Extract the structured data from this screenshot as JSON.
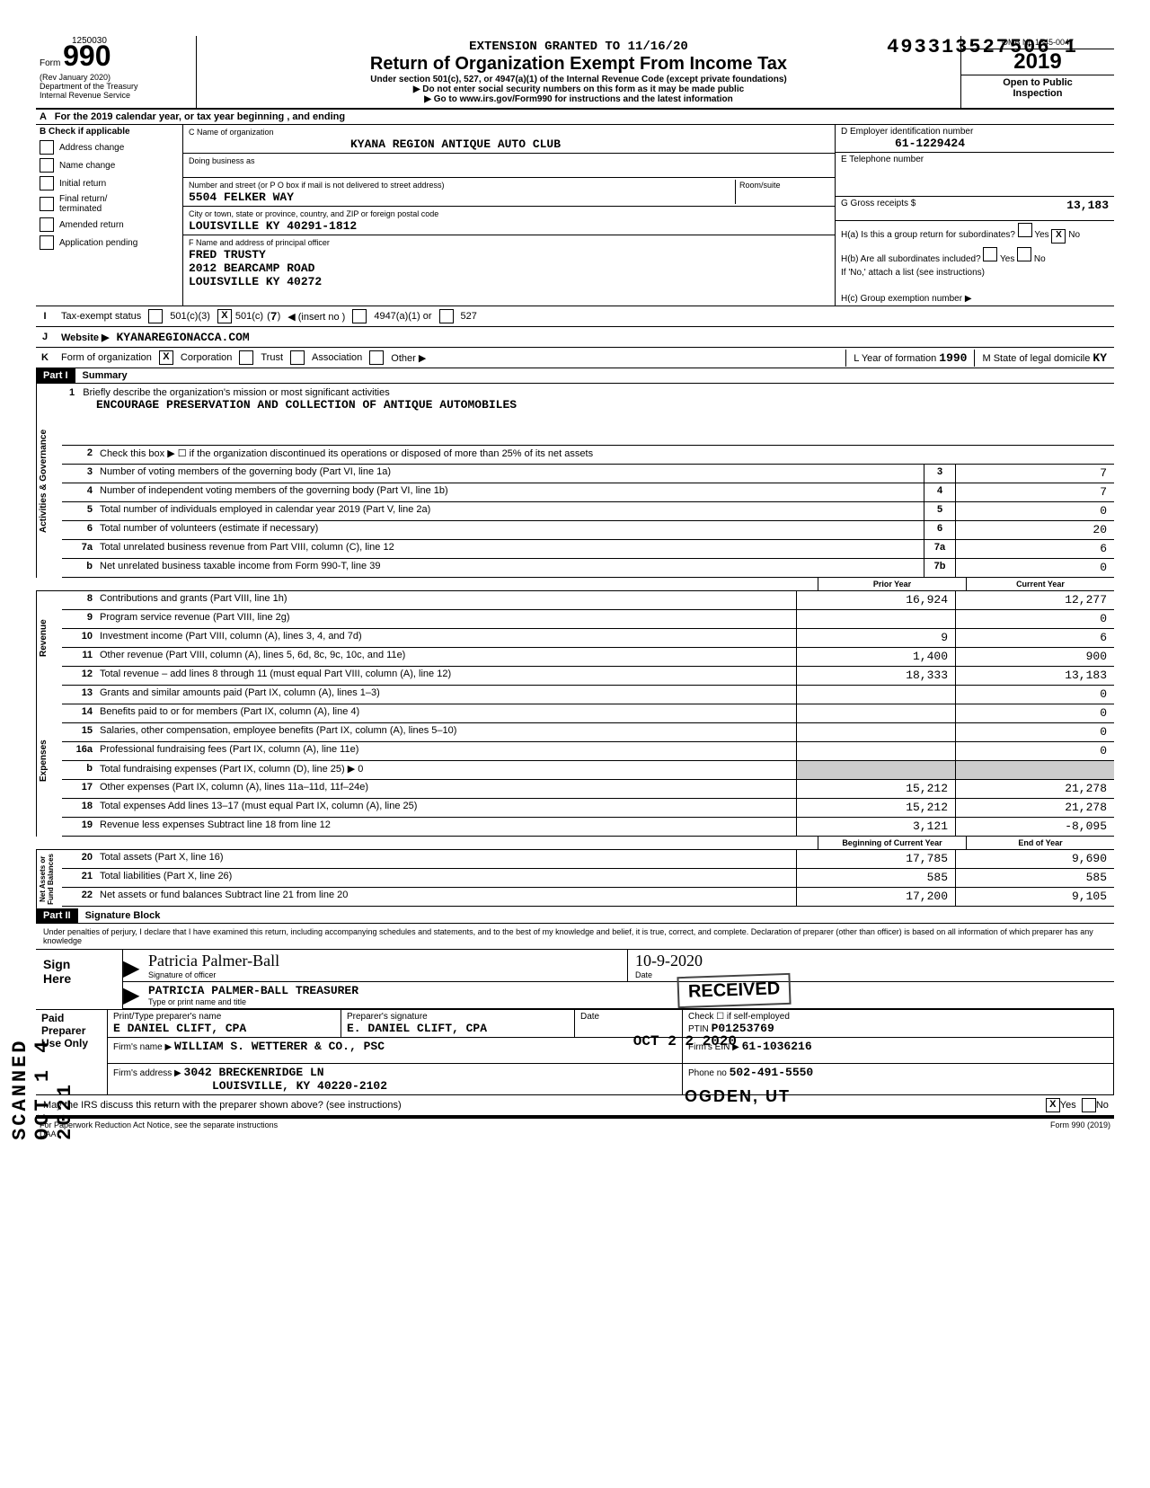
{
  "header": {
    "top_left_number": "1250030",
    "dln": "493313527506 1",
    "form_prefix": "Form",
    "form_number": "990",
    "rev": "(Rev January 2020)",
    "dept": "Department of the Treasury\nInternal Revenue Service",
    "extension": "EXTENSION GRANTED TO 11/16/20",
    "title": "Return of Organization Exempt From Income Tax",
    "subtitle1": "Under section 501(c), 527, or 4947(a)(1) of the Internal Revenue Code (except private foundations)",
    "subtitle2": "▶ Do not enter social security numbers on this form as it may be made public",
    "subtitle3": "▶ Go to www.irs.gov/Form990 for instructions and the latest information",
    "omb": "OMB No 1545-0047",
    "year": "2019",
    "open_public": "Open to Public\nInspection",
    "nineteen": "19"
  },
  "row_a": "For the 2019 calendar year, or tax year beginning                    , and ending",
  "col_b": {
    "header": "B  Check if applicable",
    "items": [
      "Address change",
      "Name change",
      "Initial return",
      "Final return/\nterminated",
      "Amended return",
      "Application pending"
    ]
  },
  "col_c": {
    "name_label": "C  Name of organization",
    "name": "KYANA REGION ANTIQUE AUTO CLUB",
    "dba_label": "Doing business as",
    "addr_label": "Number and street (or P O box if mail is not delivered to street address)",
    "room_label": "Room/suite",
    "addr": "5504 FELKER WAY",
    "city_label": "City or town, state or province, country, and ZIP or foreign postal code",
    "city": "LOUISVILLE            KY 40291-1812",
    "officer_label": "F  Name and address of principal officer",
    "officer_name": "FRED TRUSTY",
    "officer_addr1": "2012 BEARCAMP ROAD",
    "officer_addr2": "LOUISVILLE           KY  40272"
  },
  "col_d": {
    "ein_label": "D  Employer identification number",
    "ein": "61-1229424",
    "phone_label": "E  Telephone number",
    "gross_label": "G  Gross receipts $",
    "gross": "13,183",
    "ha_label": "H(a) Is this a group return for subordinates?",
    "ha_no": "X",
    "hb_label": "H(b) Are all subordinates included?",
    "hb_note": "If 'No,' attach a list (see instructions)",
    "hc_label": "H(c) Group exemption number ▶"
  },
  "row_i": {
    "label": "Tax-exempt status",
    "c501c3": "501(c)(3)",
    "c501c": "501(c)",
    "c501c_num": "7",
    "insert": "◀ (insert no )",
    "c4947": "4947(a)(1) or",
    "c527": "527",
    "x_501c": "X"
  },
  "row_j": {
    "label": "Website ▶",
    "value": "KYANAREGIONACCA.COM"
  },
  "row_k": {
    "label": "Form of organization",
    "corp": "Corporation",
    "trust": "Trust",
    "assoc": "Association",
    "other": "Other ▶",
    "x_corp": "X",
    "year_label": "L  Year of formation",
    "year": "1990",
    "state_label": "M  State of legal domicile",
    "state": "KY"
  },
  "part1": {
    "header": "Part I",
    "title": "Summary",
    "line1_label": "Briefly describe the organization's mission or most significant activities",
    "mission": "ENCOURAGE PRESERVATION AND COLLECTION OF ANTIQUE AUTOMOBILES",
    "line2": "Check this box ▶ ☐ if the organization discontinued its operations or disposed of more than 25% of its net assets",
    "lines_gov": [
      {
        "n": "3",
        "d": "Number of voting members of the governing body (Part VI, line 1a)",
        "box": "3",
        "v": "7"
      },
      {
        "n": "4",
        "d": "Number of independent voting members of the governing body (Part VI, line 1b)",
        "box": "4",
        "v": "7"
      },
      {
        "n": "5",
        "d": "Total number of individuals employed in calendar year 2019 (Part V, line 2a)",
        "box": "5",
        "v": "0"
      },
      {
        "n": "6",
        "d": "Total number of volunteers (estimate if necessary)",
        "box": "6",
        "v": "20"
      },
      {
        "n": "7a",
        "d": "Total unrelated business revenue from Part VIII, column (C), line 12",
        "box": "7a",
        "v": "6"
      },
      {
        "n": "b",
        "d": "Net unrelated business taxable income from Form 990-T, line 39",
        "box": "7b",
        "v": "0"
      }
    ],
    "prior_label": "Prior Year",
    "current_label": "Current Year",
    "lines_rev": [
      {
        "n": "8",
        "d": "Contributions and grants (Part VIII, line 1h)",
        "p": "16,924",
        "c": "12,277"
      },
      {
        "n": "9",
        "d": "Program service revenue (Part VIII, line 2g)",
        "p": "",
        "c": "0"
      },
      {
        "n": "10",
        "d": "Investment income (Part VIII, column (A), lines 3, 4, and 7d)",
        "p": "9",
        "c": "6"
      },
      {
        "n": "11",
        "d": "Other revenue (Part VIII, column (A), lines 5, 6d, 8c, 9c, 10c, and 11e)",
        "p": "1,400",
        "c": "900"
      },
      {
        "n": "12",
        "d": "Total revenue – add lines 8 through 11 (must equal Part VIII, column (A), line 12)",
        "p": "18,333",
        "c": "13,183"
      }
    ],
    "lines_exp": [
      {
        "n": "13",
        "d": "Grants and similar amounts paid (Part IX, column (A), lines 1–3)",
        "p": "",
        "c": "0"
      },
      {
        "n": "14",
        "d": "Benefits paid to or for members (Part IX, column (A), line 4)",
        "p": "",
        "c": "0"
      },
      {
        "n": "15",
        "d": "Salaries, other compensation, employee benefits (Part IX, column (A), lines 5–10)",
        "p": "",
        "c": "0"
      },
      {
        "n": "16a",
        "d": "Professional fundraising fees (Part IX, column (A), line 11e)",
        "p": "",
        "c": "0"
      },
      {
        "n": "b",
        "d": "Total fundraising expenses (Part IX, column (D), line 25) ▶                          0",
        "p": "",
        "c": "",
        "shaded": true
      },
      {
        "n": "17",
        "d": "Other expenses (Part IX, column (A), lines 11a–11d, 11f–24e)",
        "p": "15,212",
        "c": "21,278"
      },
      {
        "n": "18",
        "d": "Total expenses  Add lines 13–17 (must equal Part IX, column (A), line 25)",
        "p": "15,212",
        "c": "21,278"
      },
      {
        "n": "19",
        "d": "Revenue less expenses  Subtract line 18 from line 12",
        "p": "3,121",
        "c": "-8,095"
      }
    ],
    "begin_label": "Beginning of Current Year",
    "end_label": "End of Year",
    "lines_net": [
      {
        "n": "20",
        "d": "Total assets (Part X, line 16)",
        "p": "17,785",
        "c": "9,690"
      },
      {
        "n": "21",
        "d": "Total liabilities (Part X, line 26)",
        "p": "585",
        "c": "585"
      },
      {
        "n": "22",
        "d": "Net assets or fund balances  Subtract line 21 from line 20",
        "p": "17,200",
        "c": "9,105"
      }
    ],
    "vert_gov": "Activities & Governance",
    "vert_rev": "Revenue",
    "vert_exp": "Expenses",
    "vert_net": "Net Assets or\nFund Balances"
  },
  "part2": {
    "header": "Part II",
    "title": "Signature Block",
    "perjury": "Under penalties of perjury, I declare that I have examined this return, including accompanying schedules and statements, and to the best of my knowledge and belief, it is true, correct, and complete. Declaration of preparer (other than officer) is based on all information of which preparer has any knowledge",
    "sign_here": "Sign\nHere",
    "sig_officer": "Patricia Palmer-Ball",
    "sig_officer_label": "Signature of officer",
    "date": "10-9-2020",
    "date_label": "Date",
    "name_title": "PATRICIA PALMER-BALL                      TREASURER",
    "name_title_label": "Type or print name and title",
    "paid_label": "Paid\nPreparer\nUse Only",
    "prep_name_label": "Print/Type preparer's name",
    "prep_name": "E DANIEL CLIFT, CPA",
    "prep_sig_label": "Preparer's signature",
    "prep_sig": "E. DANIEL CLIFT, CPA",
    "prep_date_label": "Date",
    "check_label": "Check ☐ if",
    "self_emp": "self-employed",
    "ptin_label": "PTIN",
    "ptin": "P01253769",
    "firm_name_label": "Firm's name    ▶",
    "firm_name": "WILLIAM S. WETTERER & CO., PSC",
    "firm_ein_label": "Firm's EIN ▶",
    "firm_ein": "61-1036216",
    "firm_addr_label": "Firm's address  ▶",
    "firm_addr1": "3042 BRECKENRIDGE LN",
    "firm_addr2": "LOUISVILLE, KY  40220-2102",
    "phone_label": "Phone no",
    "phone": "502-491-5550",
    "discuss": "May the IRS discuss this return with the preparer shown above? (see instructions)",
    "discuss_yes": "X"
  },
  "footer": {
    "left": "For Paperwork Reduction Act Notice, see the separate instructions",
    "daa": "DAA",
    "right": "Form 990 (2019)"
  },
  "stamps": {
    "scanned": "SCANNED OCT 1 4 2021",
    "received": "RECEIVED",
    "oct22": "OCT 2 2 2020",
    "ogden": "OGDEN, UT"
  }
}
